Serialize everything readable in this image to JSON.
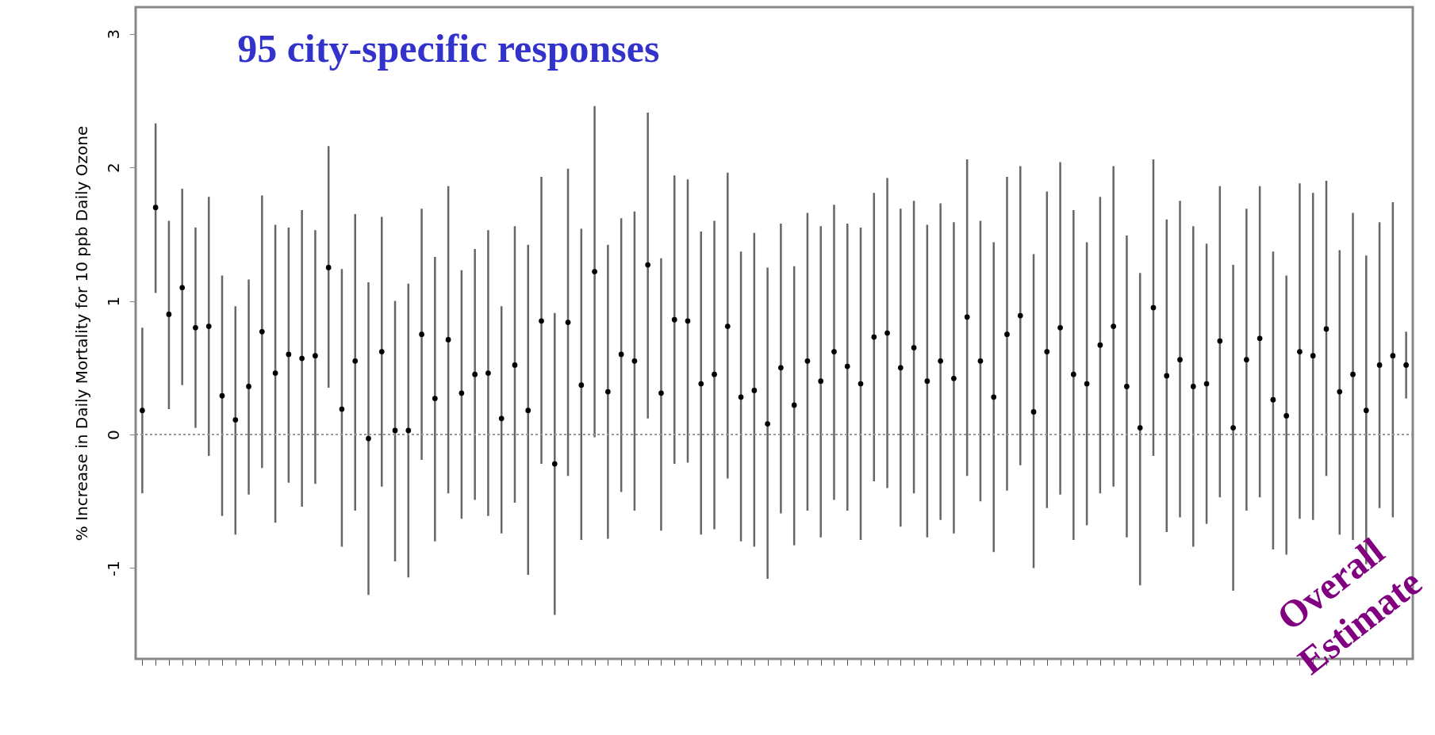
{
  "chart_data": {
    "type": "scatter",
    "ylabel": "% Increase in Daily Mortality for 10 ppb Daily Ozone",
    "categories": [
      null,
      null,
      null,
      null,
      null,
      null,
      null,
      null,
      null,
      null,
      null,
      null,
      null,
      null,
      null,
      null,
      null,
      null,
      null,
      null,
      null,
      null,
      null,
      null,
      null,
      null,
      null,
      null,
      null,
      null,
      null,
      null,
      null,
      null,
      null,
      null,
      null,
      null,
      null,
      null,
      null,
      null,
      null,
      null,
      null,
      null,
      null,
      null,
      null,
      null,
      null,
      null,
      null,
      null,
      null,
      null,
      null,
      null,
      null,
      null,
      null,
      null,
      null,
      null,
      null,
      null,
      null,
      null,
      null,
      null,
      null,
      null,
      null,
      null,
      null,
      null,
      null,
      null,
      null,
      null,
      null,
      null,
      null,
      null,
      null,
      null,
      null,
      null,
      null,
      null,
      null,
      null,
      null,
      null,
      null,
      null
    ],
    "series": [
      {
        "color": "#000000",
        "values": [
          0.18,
          1.7,
          0.9,
          1.1,
          0.8,
          0.81,
          0.29,
          0.11,
          0.36,
          0.77,
          0.46,
          0.6,
          0.57,
          0.59,
          1.25,
          0.19,
          0.55,
          -0.03,
          0.62,
          0.03,
          0.03,
          0.75,
          0.27,
          0.71,
          0.31,
          0.45,
          0.46,
          0.12,
          0.52,
          0.18,
          0.85,
          -0.22,
          0.84,
          0.37,
          1.22,
          0.32,
          0.6,
          0.55,
          1.27,
          0.31,
          0.86,
          0.85,
          0.38,
          0.45,
          0.81,
          0.28,
          0.33,
          0.08,
          0.5,
          0.22,
          0.55,
          0.4,
          0.62,
          0.51,
          0.38,
          0.73,
          0.76,
          0.5,
          0.65,
          0.4,
          0.55,
          0.42,
          0.88,
          0.55,
          0.28,
          0.75,
          0.89,
          0.17,
          0.62,
          0.8,
          0.45,
          0.38,
          0.67,
          0.81,
          0.36,
          0.05,
          0.95,
          0.44,
          0.56,
          0.36,
          0.38,
          0.7,
          0.05,
          0.56,
          0.72,
          0.26,
          0.14,
          0.62,
          0.59,
          0.79,
          0.32,
          0.45,
          0.18,
          0.52,
          0.59,
          0.52
        ],
        "errors": [
          [
            -0.44,
            0.8
          ],
          [
            1.06,
            2.33
          ],
          [
            0.19,
            1.6
          ],
          [
            0.37,
            1.84
          ],
          [
            0.05,
            1.55
          ],
          [
            -0.16,
            1.78
          ],
          [
            -0.61,
            1.19
          ],
          [
            -0.75,
            0.96
          ],
          [
            -0.45,
            1.16
          ],
          [
            -0.25,
            1.79
          ],
          [
            -0.66,
            1.57
          ],
          [
            -0.36,
            1.55
          ],
          [
            -0.54,
            1.68
          ],
          [
            -0.37,
            1.53
          ],
          [
            0.35,
            2.16
          ],
          [
            -0.84,
            1.24
          ],
          [
            -0.57,
            1.65
          ],
          [
            -1.2,
            1.14
          ],
          [
            -0.39,
            1.63
          ],
          [
            -0.95,
            1.0
          ],
          [
            -1.07,
            1.13
          ],
          [
            -0.19,
            1.69
          ],
          [
            -0.8,
            1.33
          ],
          [
            -0.44,
            1.86
          ],
          [
            -0.63,
            1.23
          ],
          [
            -0.49,
            1.39
          ],
          [
            -0.61,
            1.53
          ],
          [
            -0.74,
            0.96
          ],
          [
            -0.51,
            1.56
          ],
          [
            -1.05,
            1.42
          ],
          [
            -0.22,
            1.93
          ],
          [
            -1.35,
            0.91
          ],
          [
            -0.31,
            1.99
          ],
          [
            -0.79,
            1.54
          ],
          [
            -0.02,
            2.46
          ],
          [
            -0.78,
            1.42
          ],
          [
            -0.43,
            1.62
          ],
          [
            -0.57,
            1.67
          ],
          [
            0.12,
            2.41
          ],
          [
            -0.72,
            1.32
          ],
          [
            -0.22,
            1.94
          ],
          [
            -0.21,
            1.91
          ],
          [
            -0.75,
            1.52
          ],
          [
            -0.71,
            1.6
          ],
          [
            -0.33,
            1.96
          ],
          [
            -0.8,
            1.37
          ],
          [
            -0.84,
            1.51
          ],
          [
            -1.08,
            1.25
          ],
          [
            -0.59,
            1.58
          ],
          [
            -0.83,
            1.26
          ],
          [
            -0.57,
            1.66
          ],
          [
            -0.77,
            1.56
          ],
          [
            -0.49,
            1.72
          ],
          [
            -0.57,
            1.58
          ],
          [
            -0.79,
            1.55
          ],
          [
            -0.35,
            1.81
          ],
          [
            -0.4,
            1.92
          ],
          [
            -0.69,
            1.69
          ],
          [
            -0.44,
            1.75
          ],
          [
            -0.77,
            1.57
          ],
          [
            -0.64,
            1.73
          ],
          [
            -0.74,
            1.59
          ],
          [
            -0.31,
            2.06
          ],
          [
            -0.5,
            1.6
          ],
          [
            -0.88,
            1.44
          ],
          [
            -0.42,
            1.93
          ],
          [
            -0.23,
            2.01
          ],
          [
            -1.0,
            1.35
          ],
          [
            -0.55,
            1.82
          ],
          [
            -0.45,
            2.04
          ],
          [
            -0.79,
            1.68
          ],
          [
            -0.68,
            1.44
          ],
          [
            -0.44,
            1.78
          ],
          [
            -0.39,
            2.01
          ],
          [
            -0.77,
            1.49
          ],
          [
            -1.13,
            1.21
          ],
          [
            -0.16,
            2.06
          ],
          [
            -0.73,
            1.61
          ],
          [
            -0.62,
            1.75
          ],
          [
            -0.84,
            1.56
          ],
          [
            -0.67,
            1.43
          ],
          [
            -0.47,
            1.86
          ],
          [
            -1.17,
            1.27
          ],
          [
            -0.57,
            1.69
          ],
          [
            -0.47,
            1.86
          ],
          [
            -0.86,
            1.37
          ],
          [
            -0.9,
            1.19
          ],
          [
            -0.63,
            1.88
          ],
          [
            -0.64,
            1.81
          ],
          [
            -0.31,
            1.9
          ],
          [
            -0.75,
            1.38
          ],
          [
            -0.79,
            1.66
          ],
          [
            -0.97,
            1.34
          ],
          [
            -0.55,
            1.59
          ],
          [
            -0.62,
            1.74
          ],
          [
            0.27,
            0.77
          ]
        ]
      }
    ],
    "ylim": [
      -1.68,
      3.2
    ],
    "yticks": [
      -1,
      0,
      1,
      2,
      3
    ],
    "ref_lines": [
      {
        "axis": "y",
        "value": 0,
        "color": "#999999",
        "line_style": "dotted"
      }
    ],
    "annotations": [
      "95 city-specific responses",
      "Overall Estimate"
    ],
    "marker": "circle",
    "grid": false
  }
}
